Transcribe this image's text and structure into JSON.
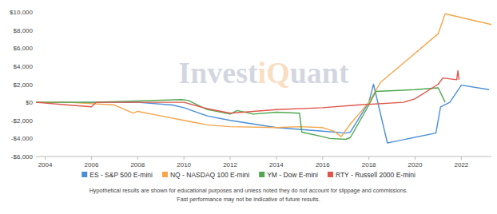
{
  "chart_data": {
    "type": "line",
    "watermark": "InvestiQuant",
    "notes": [
      "Hypothetical results are shown for educational purposes and unless noted they do not account for slippage and commissions.",
      "Fast performance may not be indicative of future results."
    ],
    "xlim": [
      2003.6,
      2023.3
    ],
    "xticks": [
      2004,
      2006,
      2008,
      2010,
      2012,
      2014,
      2016,
      2018,
      2020,
      2022
    ],
    "ylim": [
      -6000,
      10000
    ],
    "yticks": [
      {
        "value": 10000,
        "label": "$10,000"
      },
      {
        "value": 8000,
        "label": "$8,000"
      },
      {
        "value": 6000,
        "label": "$6,000"
      },
      {
        "value": 4000,
        "label": "$4,000"
      },
      {
        "value": 2000,
        "label": "$2,000"
      },
      {
        "value": 0,
        "label": "$0"
      },
      {
        "value": -2000,
        "label": "-$2,000"
      },
      {
        "value": -4000,
        "label": "-$4,000"
      },
      {
        "value": -6000,
        "label": "-$6,000"
      }
    ],
    "grid": false,
    "legend": "bottom",
    "series": [
      {
        "name": "ES - S&P 500 E-mini",
        "color": "#4a8fd6",
        "x": [
          2003.6,
          2005,
          2006,
          2008,
          2009.5,
          2010,
          2011,
          2012,
          2013,
          2014,
          2015,
          2016,
          2017,
          2017.2,
          2018,
          2018.2,
          2018.8,
          2019,
          2020.9,
          2021.1,
          2021.5,
          2022,
          2023.2
        ],
        "values": [
          0,
          0,
          0,
          0,
          -300,
          -600,
          -1500,
          -2000,
          -2400,
          -2800,
          -3000,
          -3200,
          -3400,
          -3300,
          0,
          2000,
          -4500,
          -4400,
          -3400,
          -500,
          0,
          1900,
          1400
        ]
      },
      {
        "name": "NQ - NASDAQ 100 E-mini",
        "color": "#f5a54a",
        "x": [
          2003.6,
          2005,
          2007,
          2007.8,
          2008,
          2009,
          2010,
          2011,
          2012,
          2014,
          2015,
          2016,
          2016.5,
          2016.8,
          2017.2,
          2018,
          2018.5,
          2021,
          2021.3,
          2023.3
        ],
        "values": [
          0,
          0,
          -300,
          -1200,
          -1000,
          -1500,
          -2000,
          -2500,
          -2700,
          -2800,
          -2700,
          -2800,
          -3200,
          -3800,
          -2400,
          0,
          2200,
          7600,
          9800,
          8600
        ]
      },
      {
        "name": "YM - Dow E-mini",
        "color": "#4fa84f",
        "x": [
          2003.6,
          2006,
          2009.9,
          2010.2,
          2011,
          2012,
          2012.3,
          2013,
          2014,
          2015,
          2015.1,
          2016,
          2016.3,
          2017,
          2017.2,
          2018,
          2018.3,
          2020,
          2021,
          2021.3
        ],
        "values": [
          0,
          0,
          300,
          200,
          -800,
          -1300,
          -900,
          -1300,
          -1100,
          -1200,
          -3300,
          -3800,
          -4000,
          -4100,
          -3900,
          -300,
          1200,
          1400,
          1600,
          0
        ]
      },
      {
        "name": "RTY - Russell 2000 E-mini",
        "color": "#e0564b",
        "x": [
          2003.6,
          2005,
          2006,
          2006.2,
          2009,
          2010,
          2011,
          2012,
          2014,
          2016,
          2017.5,
          2019.5,
          2020,
          2021,
          2021.2,
          2021.8,
          2021.85,
          2021.9
        ],
        "values": [
          0,
          -300,
          -500,
          0,
          0,
          0,
          -700,
          -1200,
          -800,
          -600,
          -300,
          0,
          400,
          2000,
          2700,
          2500,
          3500,
          2500
        ]
      }
    ]
  }
}
